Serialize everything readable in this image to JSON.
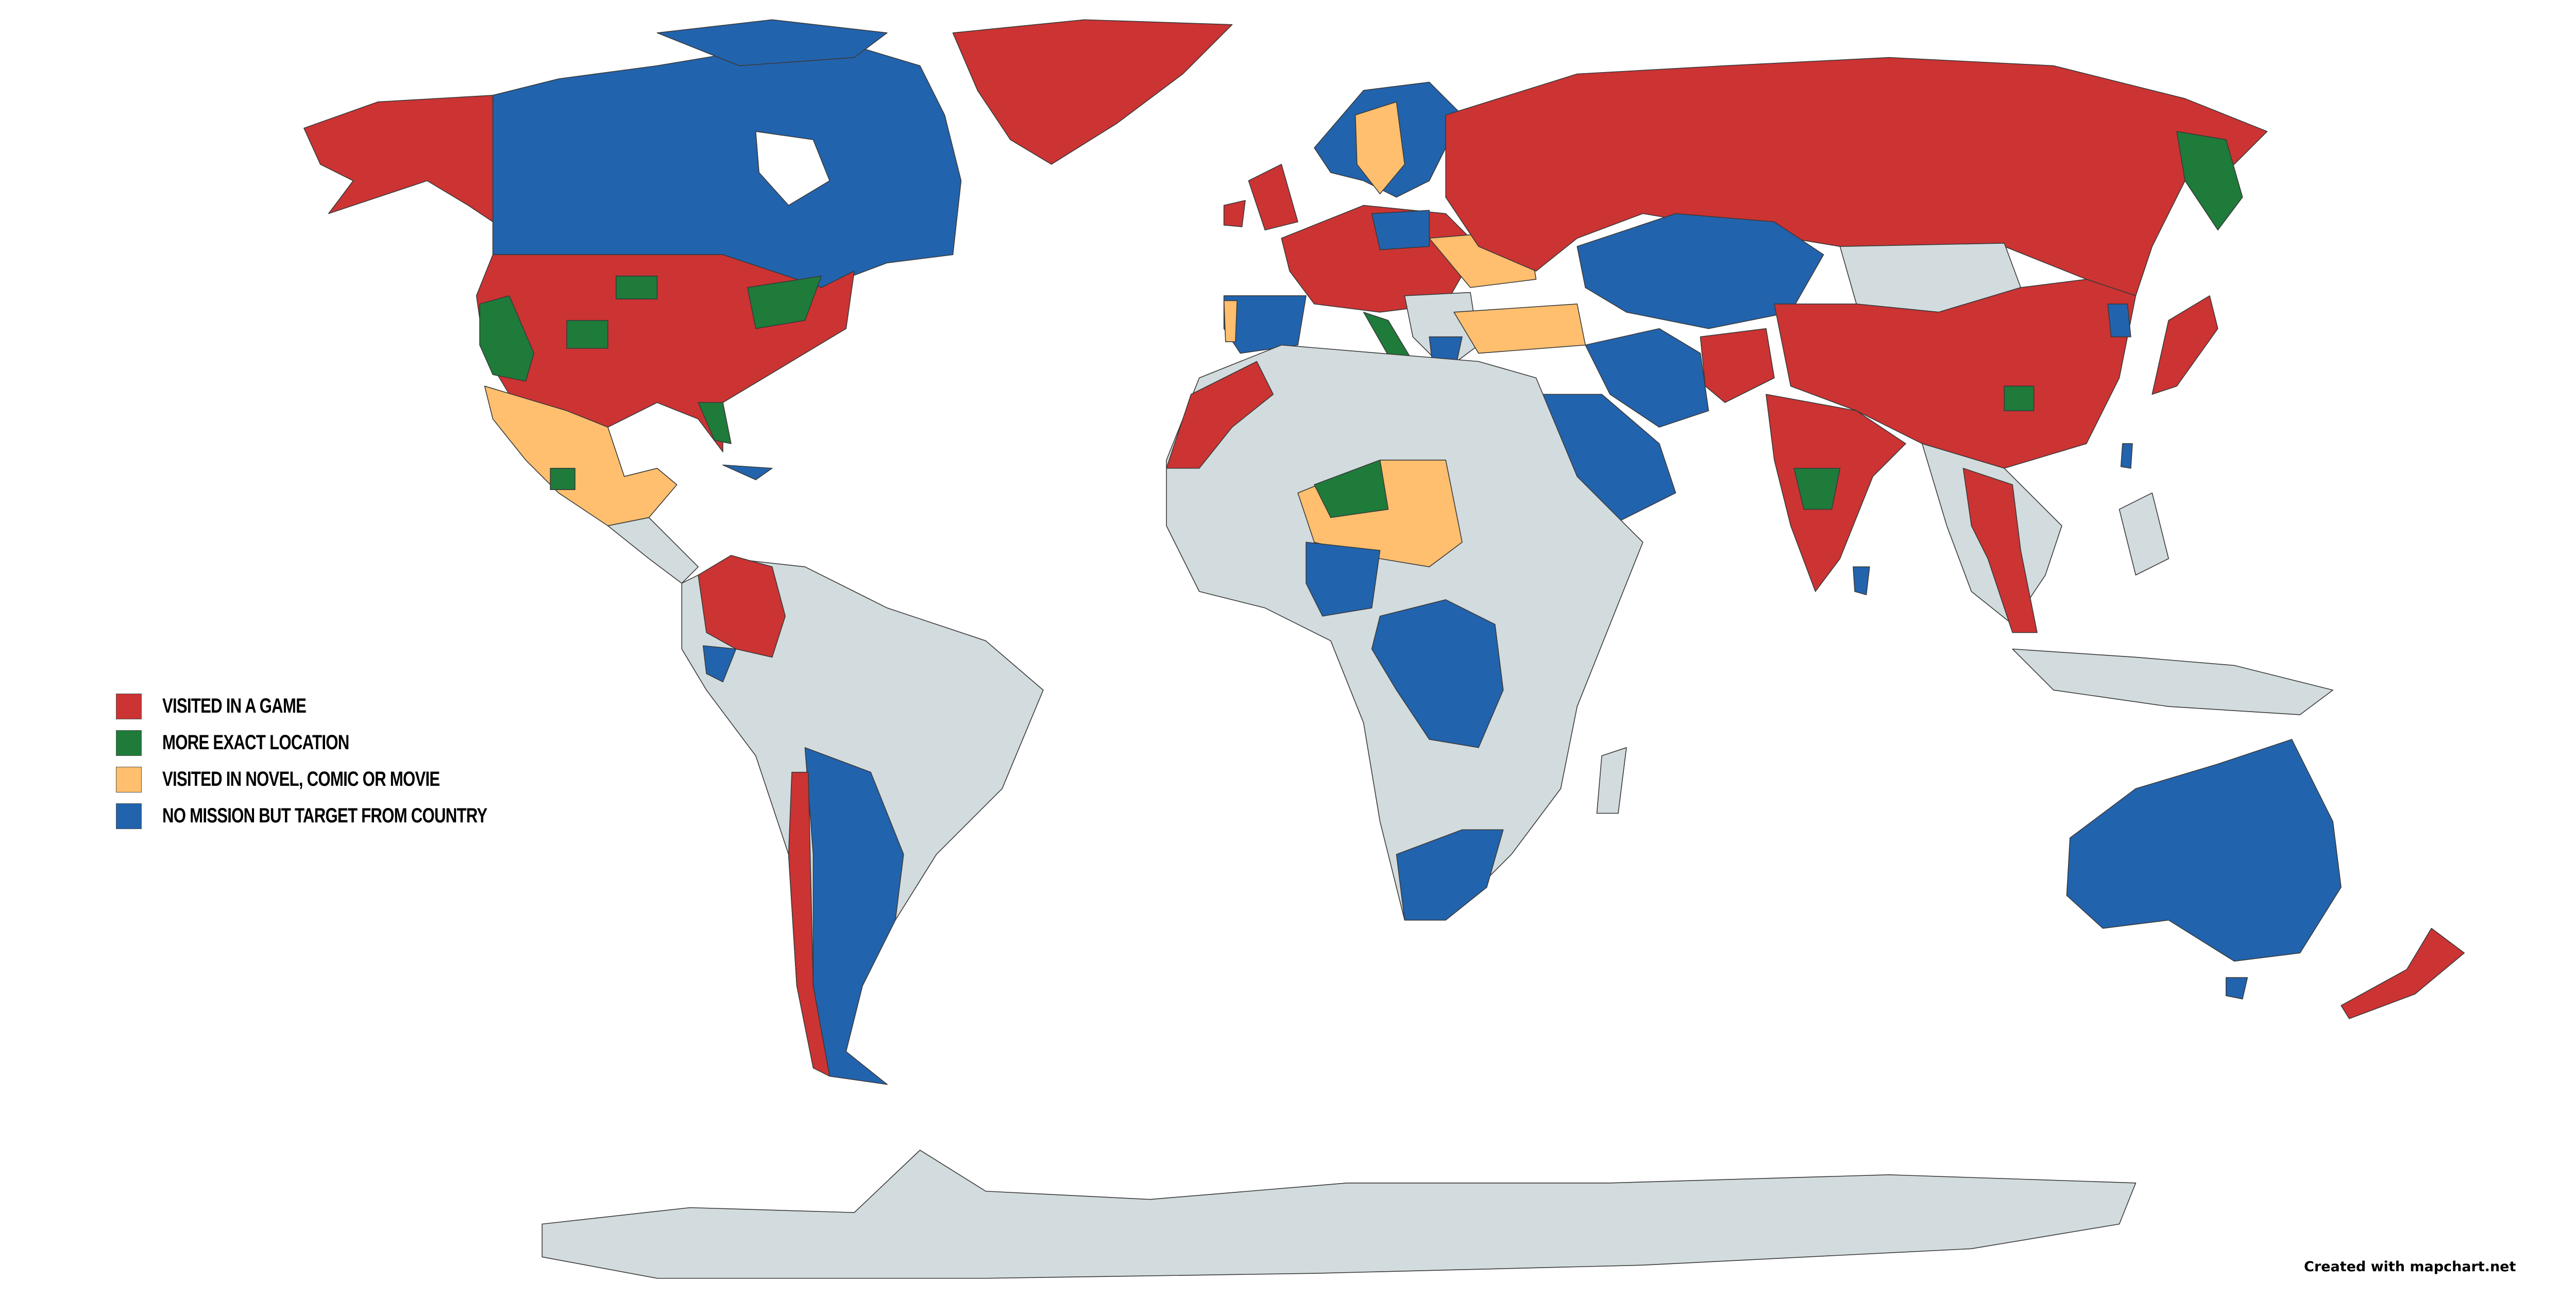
{
  "legend": {
    "items": [
      {
        "label": "VISITED IN A GAME",
        "color": "#cc3333"
      },
      {
        "label": "MORE EXACT LOCATION",
        "color": "#1e7b3a"
      },
      {
        "label": "VISITED IN NOVEL, COMIC OR MOVIE",
        "color": "#ffbf6e"
      },
      {
        "label": "NO MISSION BUT TARGET FROM COUNTRY",
        "color": "#2263ad"
      }
    ]
  },
  "colors": {
    "unvisited": "#d2dbdd",
    "background": "#ffffff",
    "border": "#3a3a3a"
  },
  "credit": "Created with mapchart.net"
}
